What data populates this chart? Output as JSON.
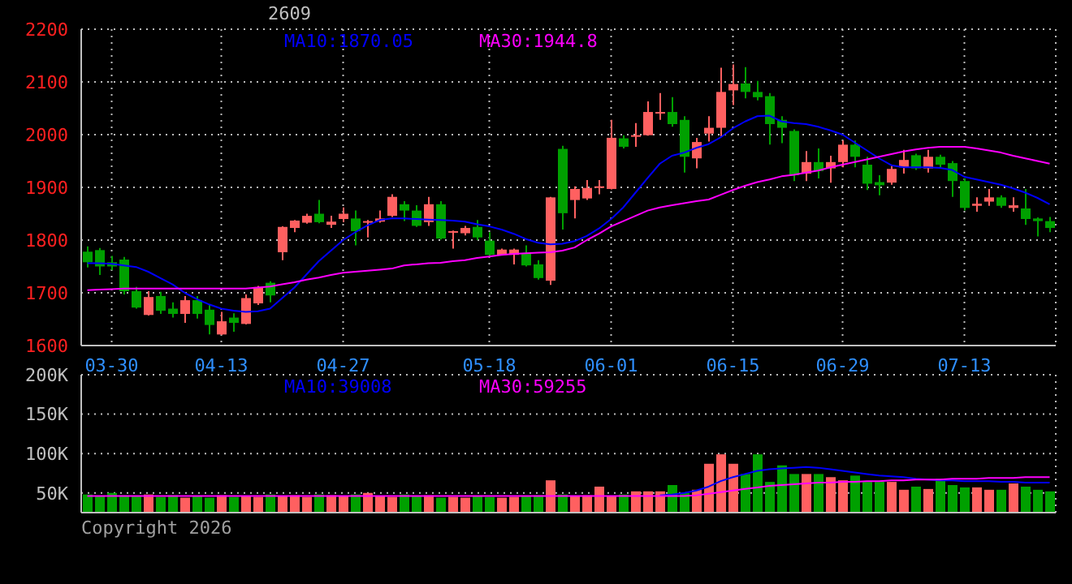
{
  "chart_data": [
    {
      "type": "candlestick",
      "title": "2609",
      "grid": true,
      "categories": [
        null,
        null,
        "03-30",
        null,
        null,
        null,
        null,
        null,
        null,
        null,
        null,
        "04-13",
        null,
        null,
        null,
        null,
        null,
        null,
        null,
        null,
        null,
        "04-27",
        null,
        null,
        null,
        null,
        null,
        null,
        null,
        null,
        null,
        null,
        null,
        "05-18",
        null,
        null,
        null,
        null,
        null,
        null,
        null,
        null,
        null,
        "06-01",
        null,
        null,
        null,
        null,
        null,
        null,
        null,
        null,
        null,
        "06-15",
        null,
        null,
        null,
        null,
        null,
        null,
        null,
        null,
        "06-29",
        null,
        null,
        null,
        null,
        null,
        null,
        null,
        null,
        null,
        "07-13",
        null,
        null,
        null,
        null,
        null,
        null,
        null
      ],
      "ohlc": [
        [
          1778,
          1788,
          1748,
          1758
        ],
        [
          1781,
          1785,
          1734,
          1750
        ],
        [
          1758,
          1770,
          1743,
          1750
        ],
        [
          1763,
          1768,
          1697,
          1703
        ],
        [
          1703,
          1711,
          1670,
          1672
        ],
        [
          1658,
          1703,
          1657,
          1692
        ],
        [
          1694,
          1702,
          1660,
          1666
        ],
        [
          1670,
          1682,
          1653,
          1660
        ],
        [
          1660,
          1694,
          1643,
          1686
        ],
        [
          1686,
          1694,
          1651,
          1660
        ],
        [
          1668,
          1677,
          1621,
          1639
        ],
        [
          1621,
          1664,
          1620,
          1646
        ],
        [
          1653,
          1661,
          1626,
          1643
        ],
        [
          1641,
          1697,
          1640,
          1690
        ],
        [
          1680,
          1713,
          1677,
          1711
        ],
        [
          1719,
          1722,
          1682,
          1695
        ],
        [
          1777,
          1826,
          1762,
          1825
        ],
        [
          1823,
          1838,
          1815,
          1837
        ],
        [
          1833,
          1850,
          1831,
          1846
        ],
        [
          1850,
          1876,
          1832,
          1834
        ],
        [
          1829,
          1846,
          1823,
          1835
        ],
        [
          1840,
          1862,
          1834,
          1850
        ],
        [
          1841,
          1856,
          1790,
          1817
        ],
        [
          1834,
          1838,
          1805,
          1836
        ],
        [
          1835,
          1856,
          1833,
          1841
        ],
        [
          1846,
          1887,
          1844,
          1882
        ],
        [
          1868,
          1874,
          1836,
          1856
        ],
        [
          1856,
          1866,
          1825,
          1827
        ],
        [
          1834,
          1882,
          1827,
          1868
        ],
        [
          1868,
          1874,
          1801,
          1803
        ],
        [
          1815,
          1818,
          1784,
          1817
        ],
        [
          1813,
          1827,
          1809,
          1823
        ],
        [
          1825,
          1838,
          1800,
          1805
        ],
        [
          1799,
          1815,
          1770,
          1772
        ],
        [
          1772,
          1784,
          1771,
          1782
        ],
        [
          1772,
          1784,
          1754,
          1782
        ],
        [
          1774,
          1790,
          1750,
          1752
        ],
        [
          1754,
          1762,
          1725,
          1728
        ],
        [
          1723,
          1882,
          1715,
          1881
        ],
        [
          1973,
          1979,
          1820,
          1851
        ],
        [
          1876,
          1902,
          1841,
          1897
        ],
        [
          1879,
          1914,
          1876,
          1899
        ],
        [
          1899,
          1914,
          1887,
          1902
        ],
        [
          1897,
          2028,
          1896,
          1994
        ],
        [
          1993,
          1999,
          1974,
          1977
        ],
        [
          1996,
          2022,
          1977,
          1999
        ],
        [
          1999,
          2063,
          1998,
          2043
        ],
        [
          2040,
          2079,
          2028,
          2043
        ],
        [
          2043,
          2071,
          2015,
          2020
        ],
        [
          2028,
          2035,
          1928,
          1958
        ],
        [
          1955,
          1994,
          1936,
          1986
        ],
        [
          2002,
          2035,
          1987,
          2013
        ],
        [
          2013,
          2127,
          1997,
          2081
        ],
        [
          2084,
          2133,
          2056,
          2096
        ],
        [
          2097,
          2128,
          2069,
          2081
        ],
        [
          2081,
          2102,
          2065,
          2071
        ],
        [
          2073,
          2079,
          1981,
          2020
        ],
        [
          2028,
          2035,
          1984,
          2013
        ],
        [
          2007,
          2010,
          1912,
          1923
        ],
        [
          1926,
          1969,
          1912,
          1948
        ],
        [
          1948,
          1974,
          1917,
          1931
        ],
        [
          1936,
          1960,
          1909,
          1948
        ],
        [
          1948,
          1989,
          1938,
          1981
        ],
        [
          1981,
          1989,
          1938,
          1958
        ],
        [
          1943,
          1958,
          1895,
          1907
        ],
        [
          1910,
          1923,
          1885,
          1904
        ],
        [
          1909,
          1940,
          1905,
          1935
        ],
        [
          1938,
          1971,
          1926,
          1952
        ],
        [
          1961,
          1964,
          1933,
          1936
        ],
        [
          1936,
          1971,
          1928,
          1958
        ],
        [
          1958,
          1962,
          1938,
          1943
        ],
        [
          1946,
          1950,
          1882,
          1912
        ],
        [
          1912,
          1917,
          1856,
          1861
        ],
        [
          1865,
          1881,
          1854,
          1869
        ],
        [
          1873,
          1897,
          1865,
          1881
        ],
        [
          1881,
          1885,
          1861,
          1865
        ],
        [
          1861,
          1881,
          1854,
          1866
        ],
        [
          1860,
          1897,
          1829,
          1840
        ],
        [
          1841,
          1843,
          1807,
          1836
        ],
        [
          1836,
          1844,
          1815,
          1823
        ]
      ],
      "colors": [
        "#00a000",
        "#00a000",
        "#00a000",
        "#00a000",
        "#00a000",
        "#ff6060",
        "#00a000",
        "#00a000",
        "#ff6060",
        "#00a000",
        "#00a000",
        "#ff6060",
        "#00a000",
        "#ff6060",
        "#ff6060",
        "#00a000",
        "#ff6060",
        "#ff6060",
        "#ff6060",
        "#00a000",
        "#ff6060",
        "#ff6060",
        "#00a000",
        "#ff6060",
        "#ff6060",
        "#ff6060",
        "#00a000",
        "#00a000",
        "#ff6060",
        "#00a000",
        "#ff6060",
        "#ff6060",
        "#00a000",
        "#00a000",
        "#ff6060",
        "#ff6060",
        "#00a000",
        "#00a000",
        "#ff6060",
        "#00a000",
        "#ff6060",
        "#ff6060",
        "#ff6060",
        "#ff6060",
        "#00a000",
        "#ff6060",
        "#ff6060",
        "#ff6060",
        "#00a000",
        "#00a000",
        "#ff6060",
        "#ff6060",
        "#ff6060",
        "#ff6060",
        "#00a000",
        "#00a000",
        "#00a000",
        "#00a000",
        "#00a000",
        "#ff6060",
        "#00a000",
        "#ff6060",
        "#ff6060",
        "#00a000",
        "#00a000",
        "#00a000",
        "#ff6060",
        "#ff6060",
        "#00a000",
        "#ff6060",
        "#00a000",
        "#00a000",
        "#00a000",
        "#ff6060",
        "#ff6060",
        "#00a000",
        "#ff6060",
        "#00a000",
        "#00a000",
        "#00a000"
      ],
      "series": [
        {
          "type": "line",
          "color": "#0000ff",
          "values": [
            1756,
            1756,
            1755,
            1752,
            1749,
            1740,
            1728,
            1716,
            1700,
            1688,
            1678,
            1670,
            1666,
            1664,
            1665,
            1670,
            1690,
            1710,
            1735,
            1760,
            1780,
            1800,
            1815,
            1828,
            1838,
            1841,
            1841,
            1840,
            1839,
            1838,
            1837,
            1835,
            1830,
            1826,
            1820,
            1812,
            1802,
            1795,
            1792,
            1793,
            1798,
            1808,
            1822,
            1840,
            1862,
            1890,
            1918,
            1945,
            1960,
            1966,
            1975,
            1982,
            1995,
            2012,
            2025,
            2035,
            2036,
            2025,
            2022,
            2020,
            2015,
            2008,
            2000,
            1985,
            1970,
            1955,
            1942,
            1938,
            1938,
            1938,
            1937,
            1933,
            1920,
            1915,
            1910,
            1905,
            1898,
            1890,
            1880,
            1868
          ]
        },
        {
          "type": "line",
          "color": "#ff00ff",
          "values": [
            1705,
            1706,
            1707,
            1708,
            1708,
            1708,
            1708,
            1708,
            1708,
            1708,
            1708,
            1708,
            1708,
            1708,
            1710,
            1712,
            1716,
            1720,
            1725,
            1729,
            1734,
            1738,
            1740,
            1742,
            1744,
            1746,
            1752,
            1754,
            1756,
            1757,
            1760,
            1762,
            1766,
            1769,
            1772,
            1774,
            1775,
            1776,
            1777,
            1780,
            1786,
            1800,
            1812,
            1826,
            1836,
            1846,
            1856,
            1862,
            1866,
            1870,
            1874,
            1877,
            1886,
            1895,
            1903,
            1910,
            1915,
            1921,
            1924,
            1928,
            1932,
            1938,
            1943,
            1948,
            1953,
            1958,
            1963,
            1968,
            1972,
            1975,
            1977,
            1977,
            1977,
            1974,
            1970,
            1966,
            1960,
            1955,
            1950,
            1945
          ]
        }
      ],
      "ylim": [
        1600,
        2200
      ],
      "yticks": [
        1600,
        1700,
        1800,
        1900,
        2000,
        2100,
        2200
      ],
      "annotations": [
        "MA10:1870.05",
        "MA30:1944.8"
      ]
    },
    {
      "type": "bar",
      "grid": true,
      "tick_labels": "y",
      "categories": [
        null,
        null,
        null,
        null,
        null,
        null,
        null,
        null,
        null,
        null,
        null,
        null,
        null,
        null,
        null,
        null,
        null,
        null,
        null,
        null,
        null,
        null,
        null,
        null,
        null,
        null,
        null,
        null,
        null,
        null,
        null,
        null,
        null,
        null,
        null,
        null,
        null,
        null,
        null,
        null,
        null,
        null,
        null,
        null,
        null,
        null,
        null,
        null,
        null,
        null,
        null,
        null,
        null,
        null,
        null,
        null,
        null,
        null,
        null,
        null,
        null,
        null,
        null,
        null,
        null,
        null,
        null,
        null,
        null,
        null,
        null,
        null,
        null,
        null,
        null,
        null,
        null,
        null,
        null,
        null
      ],
      "values": [
        48000,
        46000,
        50000,
        47000,
        46000,
        48000,
        45000,
        47000,
        44000,
        46000,
        44000,
        47000,
        45000,
        46000,
        45000,
        48000,
        46000,
        47000,
        45000,
        48000,
        47000,
        46000,
        48000,
        50000,
        46000,
        45000,
        48000,
        46000,
        47000,
        44000,
        45000,
        44000,
        46000,
        45000,
        44000,
        45000,
        46000,
        47000,
        66000,
        48000,
        46000,
        47000,
        58000,
        46000,
        48000,
        52000,
        52000,
        52000,
        60000,
        50000,
        54000,
        87000,
        99000,
        87000,
        74000,
        99000,
        64000,
        85000,
        74000,
        74000,
        74000,
        70000,
        66000,
        72000,
        64000,
        64000,
        64000,
        54000,
        58000,
        55000,
        68000,
        60000,
        57000,
        57000,
        54000,
        54000,
        62000,
        58000,
        54000,
        52000
      ],
      "colors": [
        "#00a000",
        "#00a000",
        "#00a000",
        "#00a000",
        "#00a000",
        "#ff6060",
        "#00a000",
        "#00a000",
        "#ff6060",
        "#00a000",
        "#00a000",
        "#ff6060",
        "#00a000",
        "#ff6060",
        "#ff6060",
        "#00a000",
        "#ff6060",
        "#ff6060",
        "#ff6060",
        "#00a000",
        "#ff6060",
        "#ff6060",
        "#00a000",
        "#ff6060",
        "#ff6060",
        "#ff6060",
        "#00a000",
        "#00a000",
        "#ff6060",
        "#00a000",
        "#ff6060",
        "#ff6060",
        "#00a000",
        "#00a000",
        "#ff6060",
        "#ff6060",
        "#00a000",
        "#00a000",
        "#ff6060",
        "#00a000",
        "#ff6060",
        "#ff6060",
        "#ff6060",
        "#ff6060",
        "#00a000",
        "#ff6060",
        "#ff6060",
        "#ff6060",
        "#00a000",
        "#00a000",
        "#ff6060",
        "#ff6060",
        "#ff6060",
        "#ff6060",
        "#00a000",
        "#00a000",
        "#00a000",
        "#00a000",
        "#00a000",
        "#ff6060",
        "#00a000",
        "#ff6060",
        "#ff6060",
        "#00a000",
        "#00a000",
        "#00a000",
        "#ff6060",
        "#ff6060",
        "#00a000",
        "#ff6060",
        "#00a000",
        "#00a000",
        "#00a000",
        "#ff6060",
        "#ff6060",
        "#00a000",
        "#ff6060",
        "#00a000",
        "#00a000",
        "#00a000"
      ],
      "series": [
        {
          "type": "line",
          "color": "#0000ff",
          "values": [
            null,
            null,
            null,
            null,
            null,
            null,
            null,
            null,
            null,
            null,
            null,
            null,
            null,
            null,
            null,
            null,
            null,
            null,
            null,
            null,
            null,
            null,
            null,
            null,
            null,
            null,
            null,
            null,
            null,
            null,
            null,
            null,
            null,
            null,
            null,
            null,
            null,
            null,
            null,
            null,
            null,
            null,
            null,
            null,
            null,
            null,
            null,
            47000,
            48000,
            50000,
            53000,
            58000,
            65000,
            70000,
            74000,
            78000,
            80000,
            81000,
            82000,
            83000,
            82000,
            80000,
            78000,
            76000,
            74000,
            72000,
            71000,
            70000,
            68000,
            67000,
            66000,
            66000,
            65000,
            65000,
            65000,
            64000,
            64000,
            63000,
            63000,
            63000
          ]
        },
        {
          "type": "line",
          "color": "#ff00ff",
          "values": [
            46000,
            46000,
            46000,
            46000,
            46000,
            46000,
            46000,
            46000,
            46000,
            46000,
            46000,
            46000,
            46000,
            46000,
            46000,
            46000,
            46000,
            46000,
            46000,
            46000,
            46000,
            46000,
            46000,
            46000,
            46000,
            46000,
            46000,
            46000,
            46000,
            46000,
            46000,
            46000,
            46000,
            46000,
            46000,
            46000,
            46000,
            46000,
            46000,
            46000,
            46000,
            46000,
            46000,
            46000,
            46000,
            46000,
            46000,
            46000,
            46000,
            46000,
            47000,
            49000,
            51000,
            53000,
            55000,
            57000,
            59000,
            60000,
            61000,
            62000,
            63000,
            63000,
            64000,
            64000,
            65000,
            65000,
            66000,
            66000,
            67000,
            67000,
            67000,
            68000,
            68000,
            68000,
            69000,
            69000,
            69000,
            70000,
            70000,
            70000
          ]
        }
      ],
      "ylim": [
        25000,
        200000
      ],
      "yticks": [
        {
          "value": 50000,
          "label": "50K"
        },
        {
          "value": 100000,
          "label": "100K"
        },
        {
          "value": 150000,
          "label": "150K"
        },
        {
          "value": 200000,
          "label": "200K"
        }
      ],
      "annotations": [
        "MA10:39008",
        "MA30:59255",
        "Copyright 2026"
      ]
    }
  ]
}
